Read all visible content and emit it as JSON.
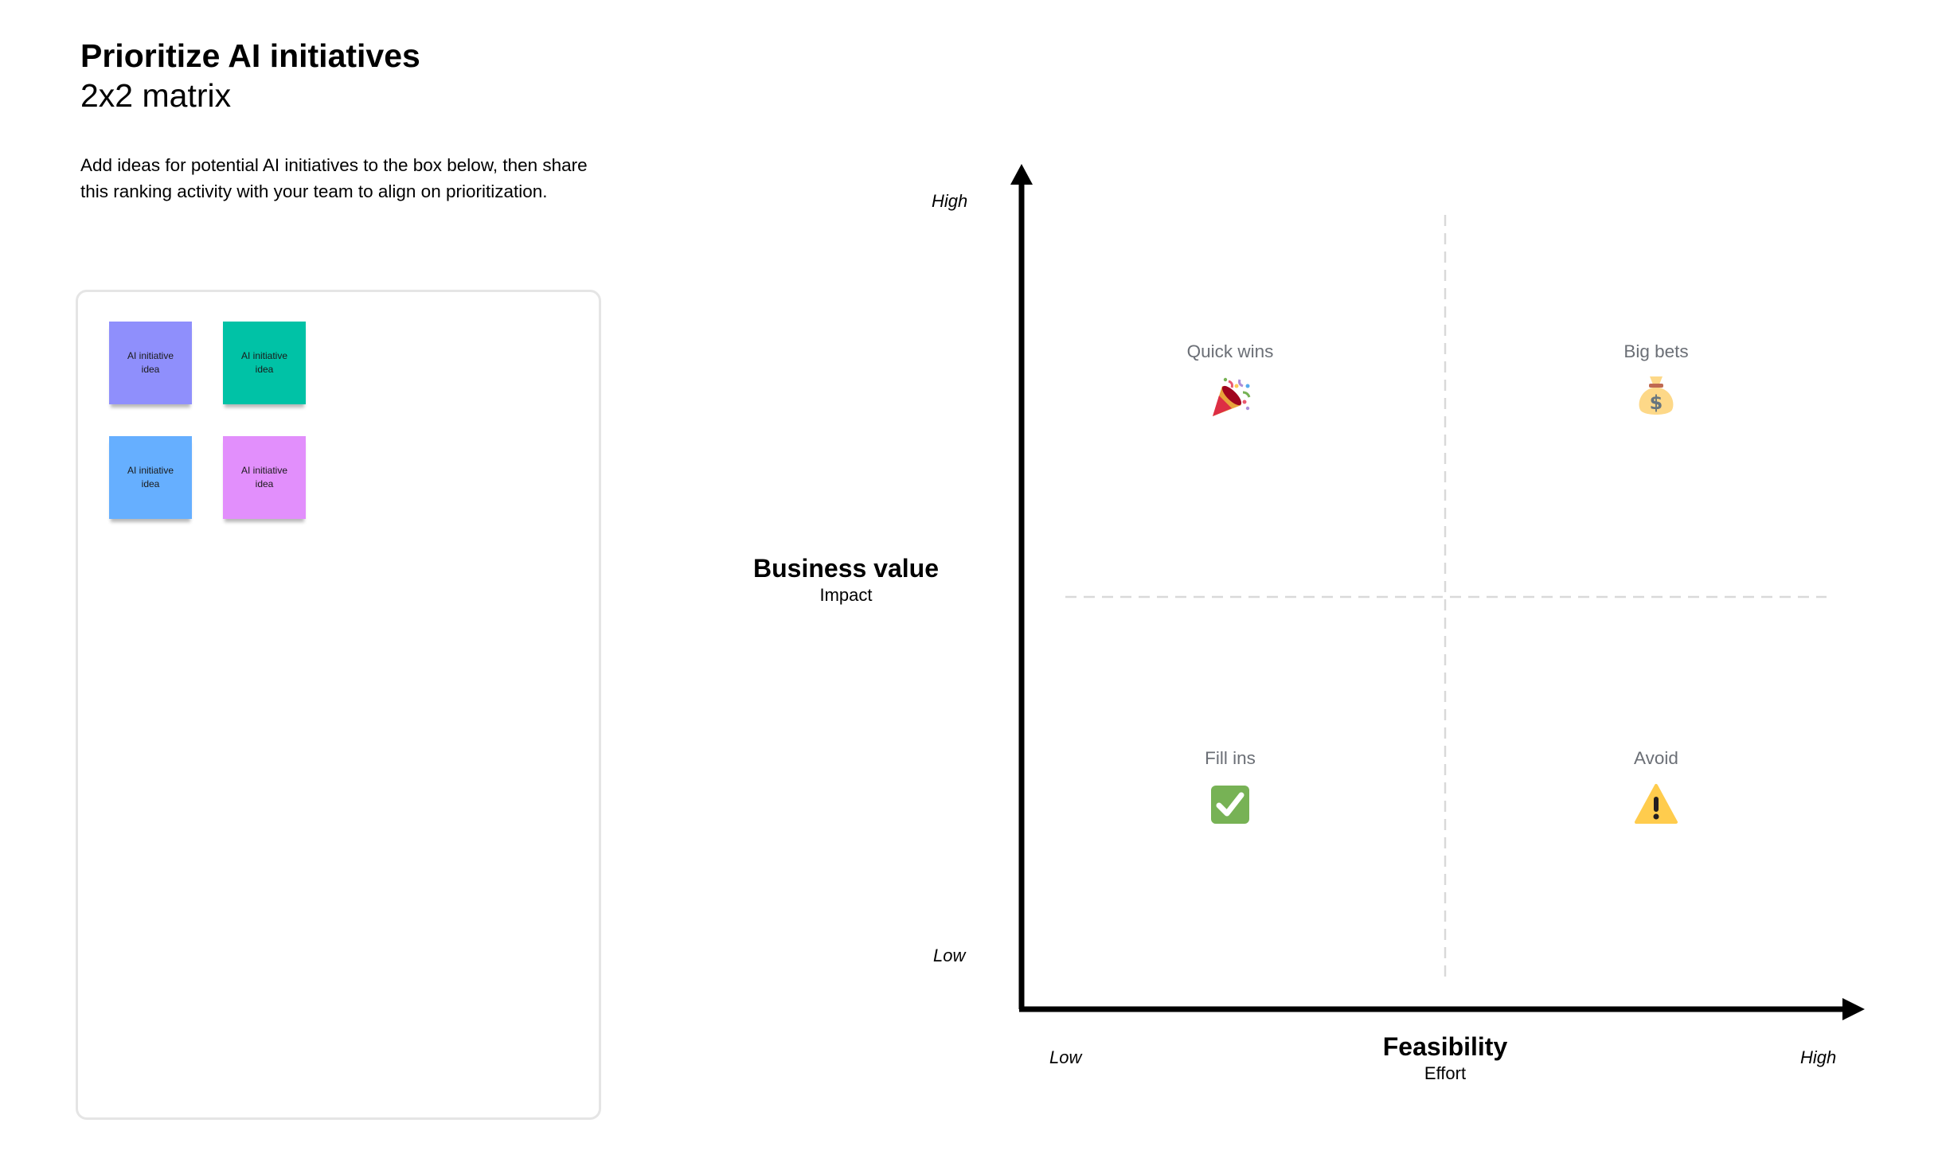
{
  "header": {
    "title": "Prioritize AI initiatives",
    "subtitle": "2x2 matrix",
    "instructions": "Add ideas for potential AI initiatives to the box below, then share this ranking activity with your team to align on prioritization."
  },
  "ideas_box": {
    "stickies": [
      {
        "text": "AI initiative idea",
        "color": "#8f8ffc"
      },
      {
        "text": "AI initiative idea",
        "color": "#00c2a6"
      },
      {
        "text": "AI initiative idea",
        "color": "#66afff"
      },
      {
        "text": "AI initiative idea",
        "color": "#e28ffc"
      }
    ]
  },
  "matrix": {
    "y_axis": {
      "title": "Business value",
      "subtitle": "Impact",
      "high": "High",
      "low": "Low"
    },
    "x_axis": {
      "title": "Feasibility",
      "subtitle": "Effort",
      "low": "Low",
      "high": "High"
    },
    "quadrants": [
      {
        "label": "Quick wins",
        "icon": "party-popper-icon"
      },
      {
        "label": "Big bets",
        "icon": "money-bag-icon"
      },
      {
        "label": "Fill ins",
        "icon": "check-mark-icon"
      },
      {
        "label": "Avoid",
        "icon": "warning-icon"
      }
    ]
  }
}
